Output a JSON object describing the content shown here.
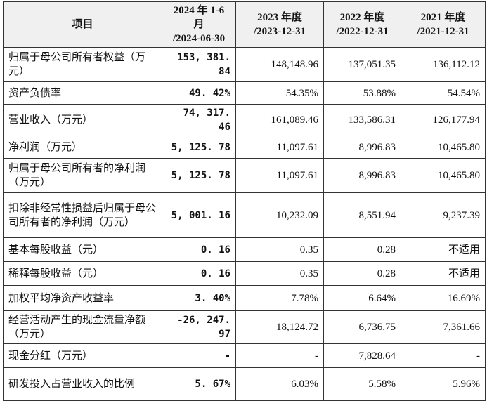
{
  "table": {
    "header": [
      "项目",
      "2024 年 1-6 月\n/2024-06-30",
      "2023 年度\n/2023-12-31",
      "2022 年度\n/2022-12-31",
      "2021 年度\n/2021-12-31"
    ],
    "rows": [
      [
        "归属于母公司所有者权益（万元）",
        "153, 381. 84",
        "148,148.96",
        "137,051.35",
        "136,112.12"
      ],
      [
        "资产负债率",
        "49. 42%",
        "54.35%",
        "53.88%",
        "54.54%"
      ],
      [
        "营业收入（万元）",
        "74, 317. 46",
        "161,089.46",
        "133,586.31",
        "126,177.94"
      ],
      [
        "净利润（万元）",
        "5, 125. 78",
        "11,097.61",
        "8,996.83",
        "10,465.80"
      ],
      [
        "归属于母公司所有者的净利润（万元）",
        "5, 125. 78",
        "11,097.61",
        "8,996.83",
        "10,465.80"
      ],
      [
        "扣除非经常性损益后归属于母公司所有者的净利润（万元）",
        "5, 001. 16",
        "10,232.09",
        "8,551.94",
        "9,237.39"
      ],
      [
        "基本每股收益（元）",
        "0. 16",
        "0.35",
        "0.28",
        "不适用"
      ],
      [
        "稀释每股收益（元）",
        "0. 16",
        "0.35",
        "0.28",
        "不适用"
      ],
      [
        "加权平均净资产收益率",
        "3. 40%",
        "7.78%",
        "6.64%",
        "16.69%"
      ],
      [
        "经营活动产生的现金流量净额（万元）",
        "-26, 247. 97",
        "18,124.72",
        "6,736.75",
        "7,361.66"
      ],
      [
        "现金分红（万元）",
        "-",
        "-",
        "7,828.64",
        "-"
      ],
      [
        "研发投入占营业收入的比例",
        "5. 67%",
        "6.03%",
        "5.58%",
        "5.96%"
      ]
    ]
  }
}
